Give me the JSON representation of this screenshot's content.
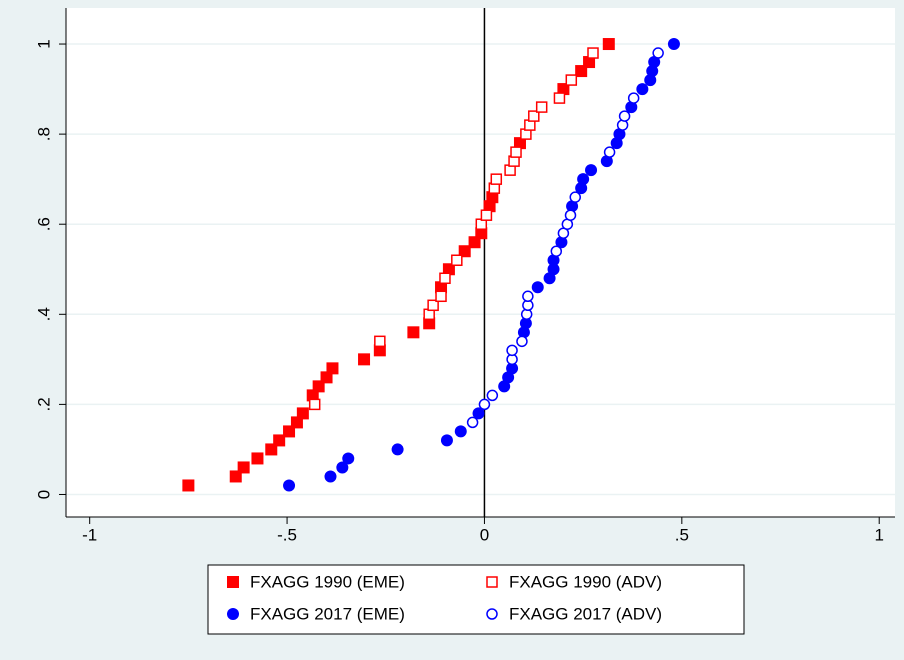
{
  "chart_data": {
    "type": "scatter",
    "xlim": [
      -1.06,
      1.04
    ],
    "ylim": [
      -0.05,
      1.08
    ],
    "xticks": [
      -1,
      {
        "value": -0.5,
        "label": "-.5"
      },
      0,
      {
        "value": 0.5,
        "label": ".5"
      },
      1
    ],
    "yticks": [
      0,
      {
        "value": 0.2,
        "label": ".2"
      },
      {
        "value": 0.4,
        "label": ".4"
      },
      {
        "value": 0.6,
        "label": ".6"
      },
      {
        "value": 0.8,
        "label": ".8"
      },
      1
    ],
    "grid": true,
    "xline": 0,
    "legend": "bottom",
    "series": [
      {
        "name": "FXAGG 1990 (EME)",
        "color": "#ff0000",
        "marker": "square",
        "filled": true,
        "x": [
          -0.75,
          -0.63,
          -0.61,
          -0.575,
          -0.54,
          -0.52,
          -0.495,
          -0.475,
          -0.46,
          -0.435,
          -0.42,
          -0.4,
          -0.385,
          -0.305,
          -0.265,
          -0.18,
          -0.14,
          -0.11,
          -0.09,
          -0.05,
          -0.025,
          -0.008,
          0.013,
          0.02,
          0.09,
          0.2,
          0.245,
          0.265,
          0.315
        ],
        "values": [
          0.02,
          0.04,
          0.06,
          0.08,
          0.1,
          0.12,
          0.14,
          0.16,
          0.18,
          0.22,
          0.24,
          0.26,
          0.28,
          0.3,
          0.32,
          0.36,
          0.38,
          0.46,
          0.5,
          0.54,
          0.56,
          0.58,
          0.64,
          0.66,
          0.78,
          0.9,
          0.94,
          0.96,
          1
        ]
      },
      {
        "name": "FXAGG 1990 (ADV)",
        "color": "#ff0000",
        "marker": "square",
        "filled": false,
        "x": [
          -0.43,
          -0.265,
          -0.14,
          -0.13,
          -0.11,
          -0.1,
          -0.07,
          -0.008,
          0.005,
          0.025,
          0.03,
          0.065,
          0.075,
          0.08,
          0.105,
          0.115,
          0.125,
          0.145,
          0.19,
          0.22,
          0.275
        ],
        "values": [
          0.2,
          0.34,
          0.4,
          0.42,
          0.44,
          0.48,
          0.52,
          0.6,
          0.62,
          0.68,
          0.7,
          0.72,
          0.74,
          0.76,
          0.8,
          0.82,
          0.84,
          0.86,
          0.88,
          0.92,
          0.98
        ]
      },
      {
        "name": "FXAGG 2017 (EME)",
        "color": "#0000ff",
        "marker": "circle",
        "filled": true,
        "x": [
          -0.495,
          -0.39,
          -0.36,
          -0.345,
          -0.22,
          -0.095,
          -0.06,
          -0.015,
          0.05,
          0.06,
          0.07,
          0.1,
          0.105,
          0.135,
          0.165,
          0.175,
          0.175,
          0.195,
          0.222,
          0.245,
          0.25,
          0.27,
          0.31,
          0.335,
          0.342,
          0.372,
          0.4,
          0.42,
          0.425,
          0.43,
          0.48
        ],
        "values": [
          0.02,
          0.04,
          0.06,
          0.08,
          0.1,
          0.12,
          0.14,
          0.18,
          0.24,
          0.26,
          0.28,
          0.36,
          0.38,
          0.46,
          0.48,
          0.5,
          0.52,
          0.56,
          0.64,
          0.68,
          0.7,
          0.72,
          0.74,
          0.78,
          0.8,
          0.86,
          0.9,
          0.92,
          0.94,
          0.96,
          1
        ]
      },
      {
        "name": "FXAGG 2017 (ADV)",
        "color": "#0000ff",
        "marker": "circle",
        "filled": false,
        "x": [
          -0.03,
          0,
          0.02,
          0.07,
          0.07,
          0.095,
          0.107,
          0.11,
          0.11,
          0.182,
          0.2,
          0.21,
          0.218,
          0.23,
          0.317,
          0.35,
          0.355,
          0.378,
          0.44
        ],
        "values": [
          0.16,
          0.2,
          0.22,
          0.3,
          0.32,
          0.34,
          0.4,
          0.42,
          0.44,
          0.54,
          0.58,
          0.6,
          0.62,
          0.66,
          0.76,
          0.82,
          0.84,
          0.88,
          0.98
        ]
      }
    ]
  }
}
